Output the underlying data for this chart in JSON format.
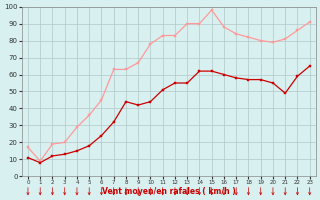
{
  "x": [
    0,
    1,
    2,
    3,
    4,
    5,
    6,
    7,
    8,
    9,
    10,
    11,
    12,
    13,
    14,
    15,
    16,
    17,
    18,
    19,
    20,
    21,
    22,
    23
  ],
  "wind_avg": [
    11,
    8,
    12,
    13,
    15,
    18,
    24,
    32,
    44,
    42,
    44,
    51,
    55,
    55,
    62,
    62,
    60,
    58,
    57,
    57,
    55,
    49,
    59,
    65
  ],
  "wind_gust": [
    17,
    9,
    19,
    20,
    29,
    36,
    45,
    63,
    63,
    67,
    78,
    83,
    83,
    90,
    90,
    98,
    88,
    84,
    82,
    80,
    79,
    81,
    86,
    91
  ],
  "avg_color": "#cc0000",
  "gust_color": "#ff9999",
  "bg_color": "#d9f0f0",
  "grid_color": "#b0c8c8",
  "xlabel": "Vent moyen/en rafales ( km/h )",
  "xlabel_color": "#cc0000",
  "ylabel_ticks": [
    0,
    10,
    20,
    30,
    40,
    50,
    60,
    70,
    80,
    90,
    100
  ],
  "xlim": [
    -0.5,
    23.5
  ],
  "ylim": [
    0,
    100
  ]
}
